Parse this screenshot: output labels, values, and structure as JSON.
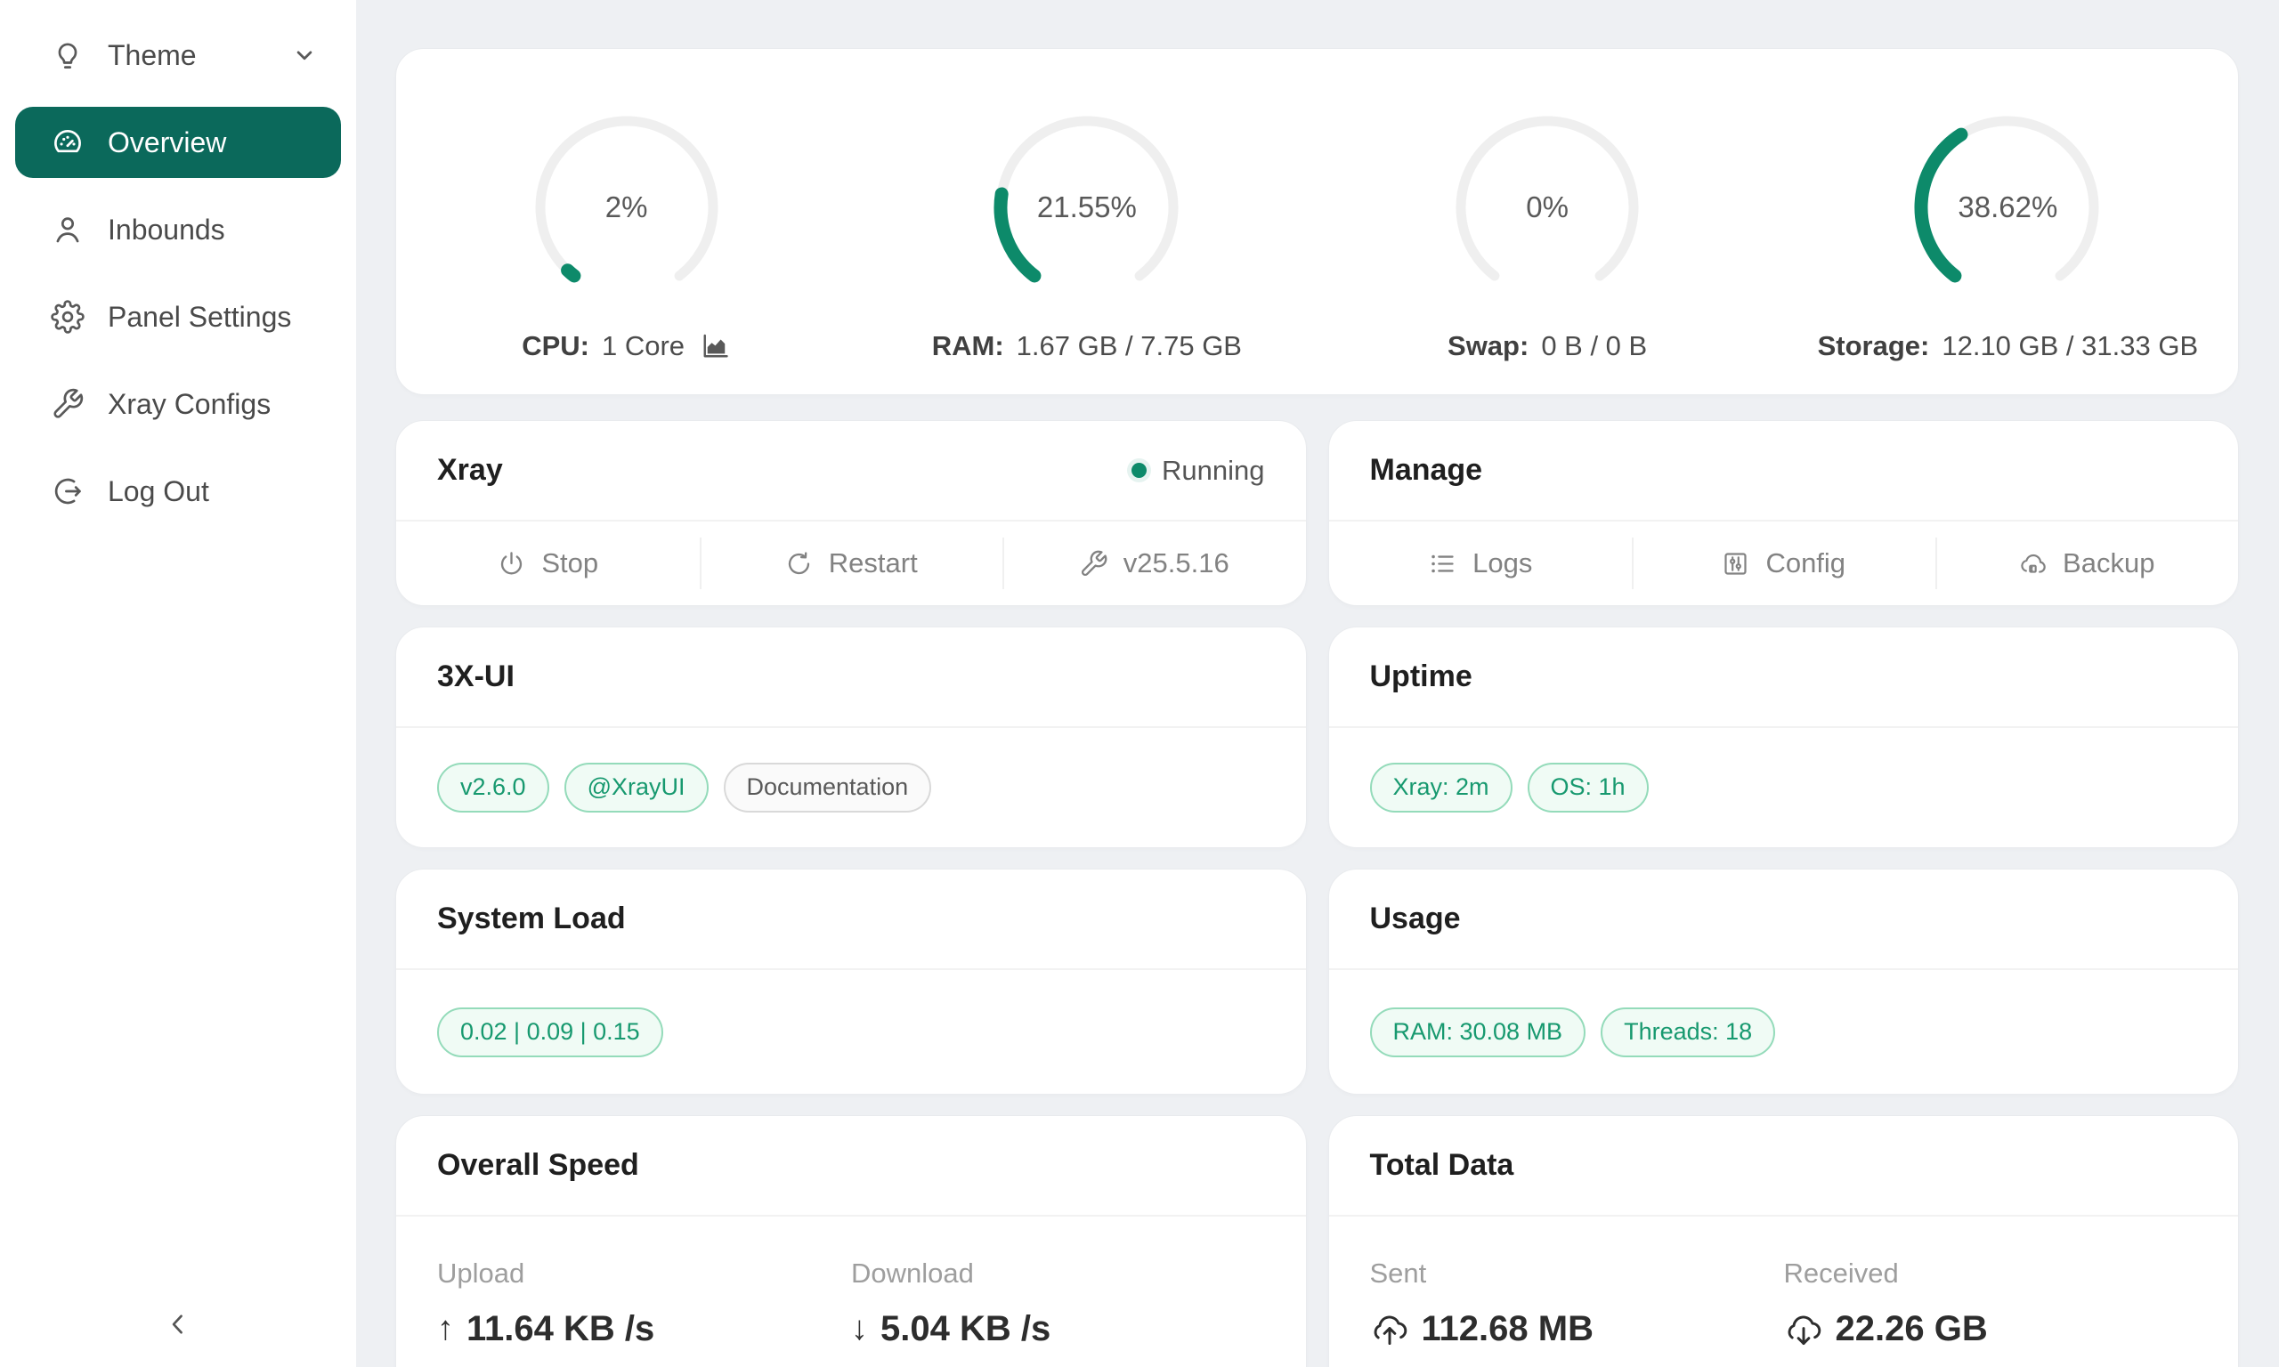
{
  "colors": {
    "accent_green": "#0d8a6a",
    "sidebar_active_bg": "#0b695b",
    "tag_green_text": "#17996f",
    "gauge_track": "#efefef",
    "page_background": "#eef0f3"
  },
  "sidebar": {
    "items": [
      {
        "label": "Theme",
        "icon": "bulb-icon",
        "trailing_icon": "chevron-down-icon",
        "active": false
      },
      {
        "label": "Overview",
        "icon": "dashboard-icon",
        "active": true
      },
      {
        "label": "Inbounds",
        "icon": "user-icon",
        "active": false
      },
      {
        "label": "Panel Settings",
        "icon": "gear-icon",
        "active": false
      },
      {
        "label": "Xray Configs",
        "icon": "wrench-icon",
        "active": false
      },
      {
        "label": "Log Out",
        "icon": "logout-icon",
        "active": false
      }
    ],
    "collapse_icon": "chevron-left-icon"
  },
  "gauges": [
    {
      "percent": 2,
      "percent_label": "2%",
      "caption_bold": "CPU:",
      "caption_rest": "1 Core",
      "chart_icon": "area-chart-icon"
    },
    {
      "percent": 21.55,
      "percent_label": "21.55%",
      "caption_bold": "RAM:",
      "caption_rest": "1.67 GB / 7.75 GB"
    },
    {
      "percent": 0,
      "percent_label": "0%",
      "caption_bold": "Swap:",
      "caption_rest": "0 B / 0 B"
    },
    {
      "percent": 38.62,
      "percent_label": "38.62%",
      "caption_bold": "Storage:",
      "caption_rest": "12.10 GB / 31.33 GB"
    }
  ],
  "xray_card": {
    "title": "Xray",
    "status": "Running",
    "actions": [
      {
        "label": "Stop",
        "icon": "power-icon"
      },
      {
        "label": "Restart",
        "icon": "reload-icon"
      },
      {
        "label": "v25.5.16",
        "icon": "wrench-icon"
      }
    ]
  },
  "manage_card": {
    "title": "Manage",
    "actions": [
      {
        "label": "Logs",
        "icon": "list-icon"
      },
      {
        "label": "Config",
        "icon": "sliders-icon"
      },
      {
        "label": "Backup",
        "icon": "cloud-server-icon"
      }
    ]
  },
  "threexui_card": {
    "title": "3X-UI",
    "tags": [
      {
        "label": "v2.6.0",
        "variant": "green"
      },
      {
        "label": "@XrayUI",
        "variant": "green"
      },
      {
        "label": "Documentation",
        "variant": "gray"
      }
    ]
  },
  "uptime_card": {
    "title": "Uptime",
    "tags": [
      {
        "label": "Xray: 2m",
        "variant": "green"
      },
      {
        "label": "OS: 1h",
        "variant": "green"
      }
    ]
  },
  "system_load_card": {
    "title": "System Load",
    "tags": [
      {
        "label": "0.02 | 0.09 | 0.15",
        "variant": "green"
      }
    ]
  },
  "usage_card": {
    "title": "Usage",
    "tags": [
      {
        "label": "RAM: 30.08 MB",
        "variant": "green"
      },
      {
        "label": "Threads: 18",
        "variant": "green"
      }
    ]
  },
  "overall_speed_card": {
    "title": "Overall Speed",
    "stats": [
      {
        "label": "Upload",
        "icon": "arrow-up-icon",
        "glyph": "↑",
        "value": "11.64 KB /s"
      },
      {
        "label": "Download",
        "icon": "arrow-down-icon",
        "glyph": "↓",
        "value": "5.04 KB /s"
      }
    ]
  },
  "total_data_card": {
    "title": "Total Data",
    "stats": [
      {
        "label": "Sent",
        "icon": "cloud-upload-icon",
        "value": "112.68 MB"
      },
      {
        "label": "Received",
        "icon": "cloud-download-icon",
        "value": "22.26 GB"
      }
    ]
  }
}
